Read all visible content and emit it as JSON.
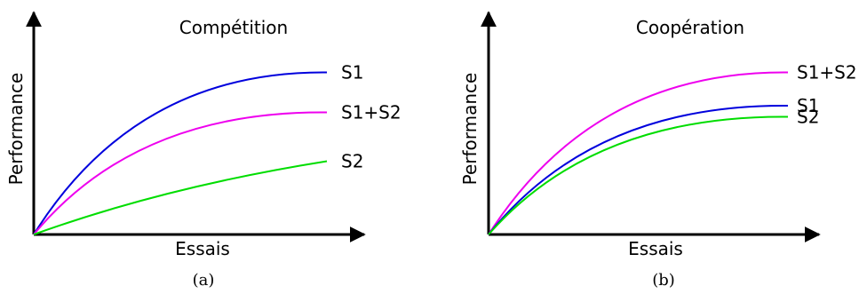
{
  "chart_data": [
    {
      "type": "line",
      "title": "Compétition",
      "xlabel": "Essais",
      "ylabel": "Performance",
      "caption": "(a)",
      "xlim": [
        0,
        1
      ],
      "ylim": [
        0,
        1
      ],
      "grid": false,
      "series": [
        {
          "name": "S1",
          "color": "#0000dd",
          "end_value": 0.73,
          "shape": "concave"
        },
        {
          "name": "S1+S2",
          "color": "#ee00ee",
          "end_value": 0.55,
          "shape": "concave"
        },
        {
          "name": "S2",
          "color": "#00dd00",
          "end_value": 0.33,
          "shape": "mild-concave"
        }
      ]
    },
    {
      "type": "line",
      "title": "Coopération",
      "xlabel": "Essais",
      "ylabel": "Performance",
      "caption": "(b)",
      "xlim": [
        0,
        1
      ],
      "ylim": [
        0,
        1
      ],
      "grid": false,
      "series": [
        {
          "name": "S1+S2",
          "color": "#ee00ee",
          "end_value": 0.73,
          "shape": "concave"
        },
        {
          "name": "S1",
          "color": "#0000dd",
          "end_value": 0.58,
          "shape": "concave"
        },
        {
          "name": "S2",
          "color": "#00dd00",
          "end_value": 0.53,
          "shape": "concave"
        }
      ]
    }
  ]
}
